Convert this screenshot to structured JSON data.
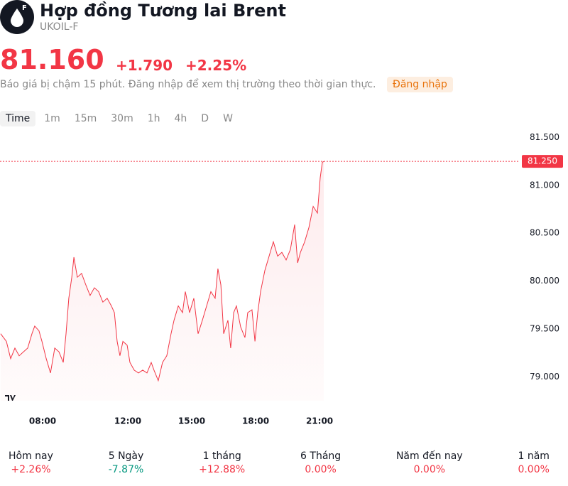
{
  "header": {
    "icon_letter": "F",
    "title": "Hợp đồng Tương lai Brent",
    "symbol": "UKOIL-F"
  },
  "quote": {
    "price": "81.160",
    "change": "+1.790",
    "change_percent": "+2.25%",
    "note": "Báo giá bị chậm 15 phút. Đăng nhập để xem thị trường theo thời gian thực.",
    "login": "Đăng nhập"
  },
  "timeframes": {
    "items": [
      "Time",
      "1m",
      "15m",
      "30m",
      "1h",
      "4h",
      "D",
      "W"
    ],
    "selected": 0
  },
  "chart_data": {
    "type": "line",
    "color": "#f23645",
    "grid": false,
    "x": [
      6.03,
      6.3,
      6.5,
      6.7,
      6.9,
      7.1,
      7.3,
      7.5,
      7.63,
      7.83,
      7.97,
      8.17,
      8.37,
      8.57,
      8.77,
      8.97,
      9.1,
      9.23,
      9.37,
      9.47,
      9.63,
      9.83,
      10.03,
      10.23,
      10.43,
      10.63,
      10.83,
      11.03,
      11.23,
      11.37,
      11.5,
      11.63,
      11.77,
      11.97,
      12.1,
      12.3,
      12.5,
      12.7,
      12.9,
      13.1,
      13.23,
      13.43,
      13.63,
      13.83,
      14.03,
      14.17,
      14.37,
      14.57,
      14.7,
      14.9,
      15.1,
      15.3,
      15.5,
      15.7,
      15.9,
      16.1,
      16.23,
      16.37,
      16.5,
      16.7,
      16.83,
      16.97,
      17.1,
      17.3,
      17.5,
      17.63,
      17.83,
      17.97,
      18.1,
      18.23,
      18.43,
      18.63,
      18.83,
      19.03,
      19.23,
      19.43,
      19.63,
      19.83,
      19.97,
      20.1,
      20.3,
      20.5,
      20.7,
      20.9,
      21.03,
      21.13,
      21.2
    ],
    "values": [
      79.45,
      79.37,
      79.19,
      79.3,
      79.22,
      79.26,
      79.3,
      79.45,
      79.53,
      79.48,
      79.37,
      79.19,
      79.04,
      79.3,
      79.26,
      79.15,
      79.45,
      79.82,
      80.04,
      80.25,
      80.04,
      80.08,
      79.96,
      79.85,
      79.93,
      79.89,
      79.78,
      79.82,
      79.74,
      79.67,
      79.37,
      79.22,
      79.37,
      79.33,
      79.15,
      79.07,
      79.04,
      79.07,
      79.04,
      79.15,
      79.07,
      78.96,
      79.15,
      79.22,
      79.45,
      79.59,
      79.74,
      79.67,
      79.89,
      79.67,
      79.82,
      79.45,
      79.59,
      79.74,
      79.89,
      79.82,
      80.13,
      79.96,
      79.45,
      79.59,
      79.3,
      79.67,
      79.74,
      79.52,
      79.41,
      79.67,
      79.7,
      79.37,
      79.67,
      79.89,
      80.11,
      80.26,
      80.41,
      80.26,
      80.3,
      80.22,
      80.33,
      80.59,
      80.19,
      80.3,
      80.41,
      80.56,
      80.78,
      80.71,
      81.08,
      81.24,
      81.25
    ],
    "xlim": [
      6,
      30.33
    ],
    "ylim": [
      78.75,
      81.6
    ],
    "xticks": [
      {
        "value": 8,
        "label": "08:00"
      },
      {
        "value": 12,
        "label": "12:00"
      },
      {
        "value": 15,
        "label": "15:00"
      },
      {
        "value": 18,
        "label": "18:00"
      },
      {
        "value": 21,
        "label": "21:00"
      }
    ],
    "yticks": [
      {
        "value": 79,
        "label": "79.000"
      },
      {
        "value": 79.5,
        "label": "79.500"
      },
      {
        "value": 80,
        "label": "80.000"
      },
      {
        "value": 80.5,
        "label": "80.500"
      },
      {
        "value": 81,
        "label": "81.000"
      },
      {
        "value": 81.5,
        "label": "81.500"
      }
    ],
    "price_line": {
      "value": 81.25,
      "label": "81.250"
    }
  },
  "performance": {
    "up_color": "#f23645",
    "down_color": "#089981",
    "items": [
      {
        "label": "Hôm nay",
        "value": "+2.26%"
      },
      {
        "label": "5 Ngày",
        "value": "-7.87%"
      },
      {
        "label": "1 tháng",
        "value": "+12.88%"
      },
      {
        "label": "6 Tháng",
        "value": "0.00%"
      },
      {
        "label": "Năm đến nay",
        "value": "0.00%"
      },
      {
        "label": "1 năm",
        "value": "0.00%"
      }
    ]
  }
}
